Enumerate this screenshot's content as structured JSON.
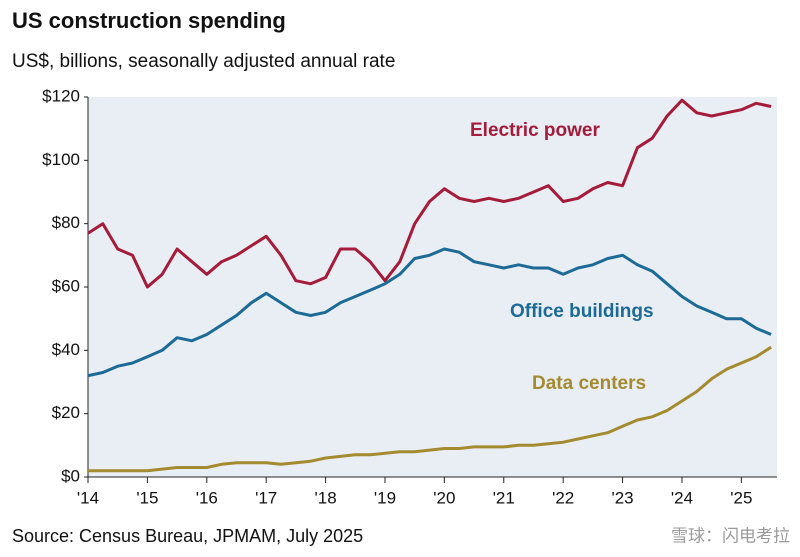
{
  "chart_data": {
    "type": "line",
    "title": "US construction spending",
    "subtitle": "US$, billions, seasonally adjusted annual rate",
    "source": "Source: Census Bureau, JPMAM, July 2025",
    "watermark": "雪球：闪电考拉",
    "x": [
      2014,
      2014.25,
      2014.5,
      2014.75,
      2015,
      2015.25,
      2015.5,
      2015.75,
      2016,
      2016.25,
      2016.5,
      2016.75,
      2017,
      2017.25,
      2017.5,
      2017.75,
      2018,
      2018.25,
      2018.5,
      2018.75,
      2019,
      2019.25,
      2019.5,
      2019.75,
      2020,
      2020.25,
      2020.5,
      2020.75,
      2021,
      2021.25,
      2021.5,
      2021.75,
      2022,
      2022.25,
      2022.5,
      2022.75,
      2023,
      2023.25,
      2023.5,
      2023.75,
      2024,
      2024.25,
      2024.5,
      2024.75,
      2025,
      2025.25,
      2025.5
    ],
    "series": [
      {
        "name": "Electric power",
        "color": "#a51c3a",
        "values": [
          77,
          80,
          72,
          70,
          60,
          64,
          72,
          68,
          64,
          68,
          70,
          73,
          76,
          70,
          62,
          61,
          63,
          72,
          72,
          68,
          62,
          68,
          80,
          87,
          91,
          88,
          87,
          88,
          87,
          88,
          90,
          92,
          87,
          88,
          91,
          93,
          92,
          104,
          107,
          114,
          119,
          115,
          114,
          115,
          116,
          118,
          117
        ]
      },
      {
        "name": "Office buildings",
        "color": "#1c6b96",
        "values": [
          32,
          33,
          35,
          36,
          38,
          40,
          44,
          43,
          45,
          48,
          51,
          55,
          58,
          55,
          52,
          51,
          52,
          55,
          57,
          59,
          61,
          64,
          69,
          70,
          72,
          71,
          68,
          67,
          66,
          67,
          66,
          66,
          64,
          66,
          67,
          69,
          70,
          67,
          65,
          61,
          57,
          54,
          52,
          50,
          50,
          47,
          45
        ]
      },
      {
        "name": "Data centers",
        "color": "#a48b2f",
        "values": [
          2,
          2,
          2,
          2,
          2,
          2.5,
          3,
          3,
          3,
          4,
          4.5,
          4.5,
          4.5,
          4,
          4.5,
          5,
          6,
          6.5,
          7,
          7,
          7.5,
          8,
          8,
          8.5,
          9,
          9,
          9.5,
          9.5,
          9.5,
          10,
          10,
          10.5,
          11,
          12,
          13,
          14,
          16,
          18,
          19,
          21,
          24,
          27,
          31,
          34,
          36,
          38,
          41
        ]
      }
    ],
    "xlim": [
      2014,
      2025.6
    ],
    "xticks": [
      {
        "value": 2014,
        "label": "'14"
      },
      {
        "value": 2015,
        "label": "'15"
      },
      {
        "value": 2016,
        "label": "'16"
      },
      {
        "value": 2017,
        "label": "'17"
      },
      {
        "value": 2018,
        "label": "'18"
      },
      {
        "value": 2019,
        "label": "'19"
      },
      {
        "value": 2020,
        "label": "'20"
      },
      {
        "value": 2021,
        "label": "'21"
      },
      {
        "value": 2022,
        "label": "'22"
      },
      {
        "value": 2023,
        "label": "'23"
      },
      {
        "value": 2024,
        "label": "'24"
      },
      {
        "value": 2025,
        "label": "'25"
      }
    ],
    "ylim": [
      0,
      120
    ],
    "yticks": [
      {
        "value": 0,
        "label": "$0"
      },
      {
        "value": 20,
        "label": "$20"
      },
      {
        "value": 40,
        "label": "$40"
      },
      {
        "value": 60,
        "label": "$60"
      },
      {
        "value": 80,
        "label": "$80"
      },
      {
        "value": 100,
        "label": "$100"
      },
      {
        "value": 120,
        "label": "$120"
      }
    ],
    "grid": false
  }
}
